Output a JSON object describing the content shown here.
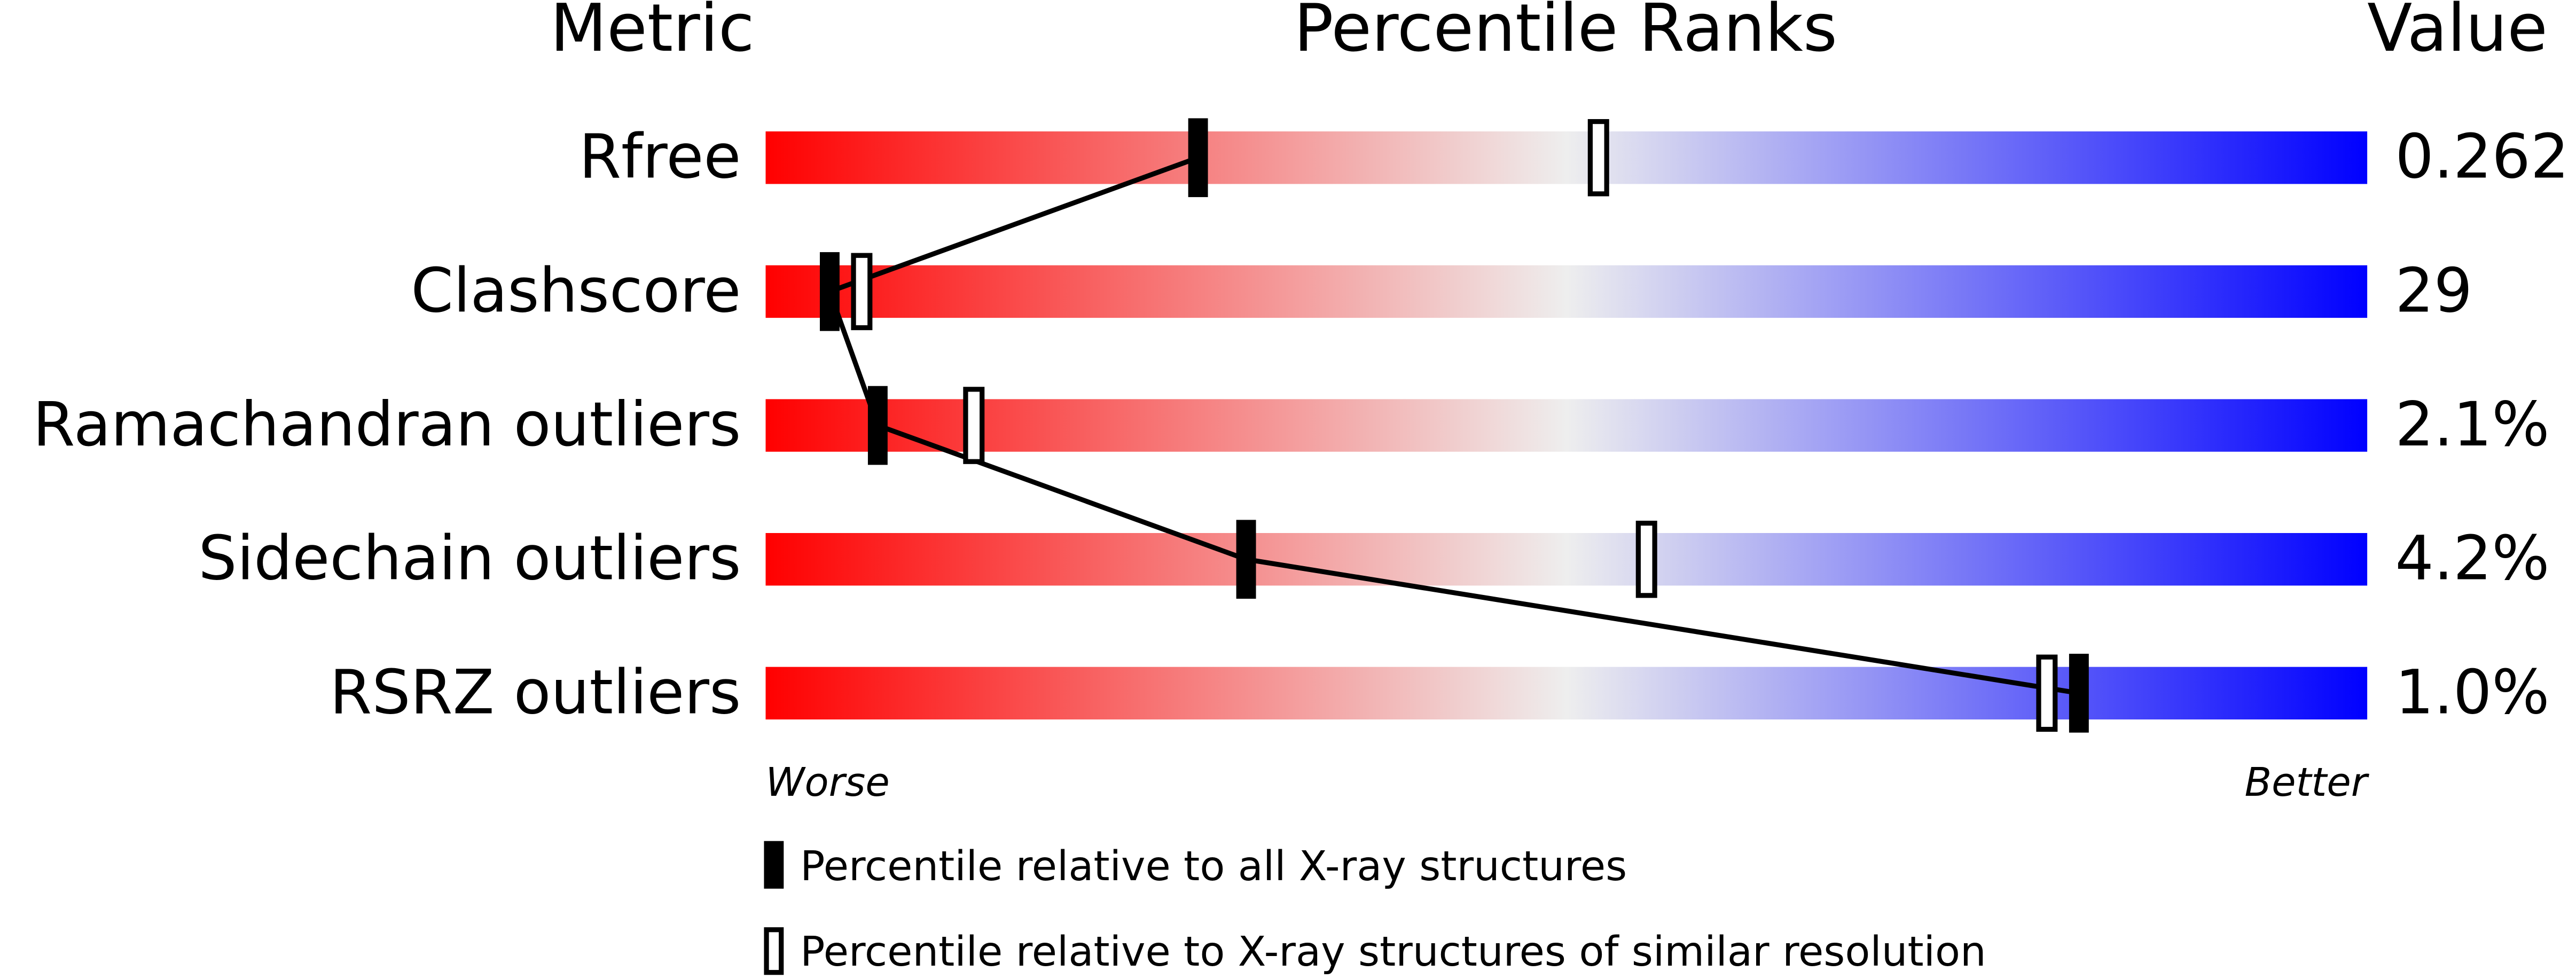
{
  "chart_data": {
    "type": "percentile",
    "headers": [
      "Metric",
      "Percentile Ranks",
      "Value"
    ],
    "categories": [
      "Rfree",
      "Clashscore",
      "Ramachandran outliers",
      "Sidechain outliers",
      "RSRZ outliers"
    ],
    "metric_values": [
      "0.262",
      "29",
      "2.1%",
      "4.2%",
      "1.0%"
    ],
    "series": [
      {
        "name": "Percentile relative to all X-ray structures",
        "color": "#000000",
        "style": "filled",
        "values": [
          27,
          4,
          7,
          30,
          82
        ]
      },
      {
        "name": "Percentile relative to X-ray structures of similar resolution",
        "color": "#000000",
        "style": "hollow",
        "values": [
          52,
          6,
          13,
          55,
          80
        ]
      }
    ],
    "xlim": [
      0,
      100
    ],
    "axis_ends": [
      "Worse",
      "Better"
    ],
    "gradient": [
      "#ff0000",
      "#eeeeee",
      "#0000ff"
    ]
  }
}
